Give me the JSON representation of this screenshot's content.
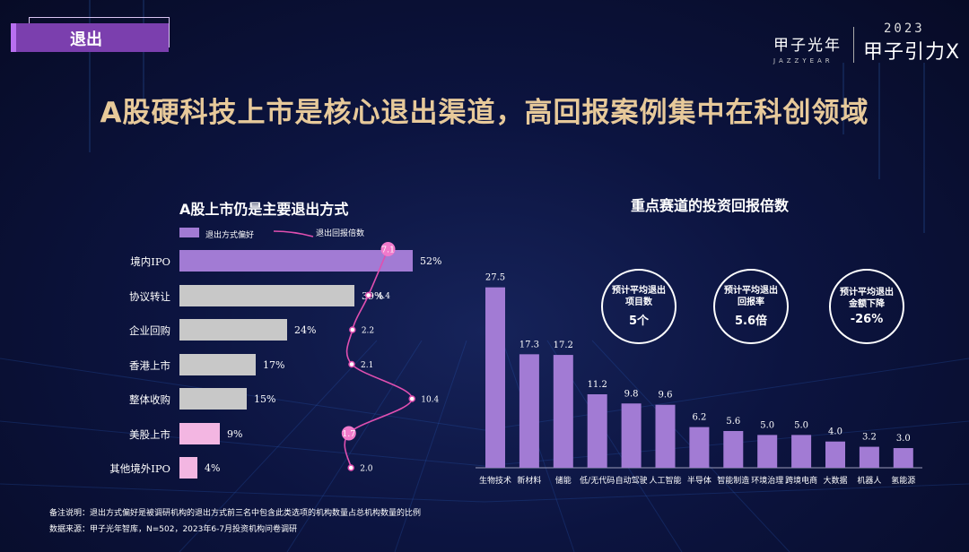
{
  "section_tag": "退出",
  "brand": {
    "name": "甲子光年",
    "name_en": "JAZZYEAR",
    "event_year": "2023",
    "event_name": "甲子引力X"
  },
  "headline": "A股硬科技上市是核心退出渠道，高回报案例集中在科创领域",
  "left_chart": {
    "title": "A股上市仍是主要退出方式",
    "legend": {
      "bar": "退出方式偏好",
      "line": "退出回报倍数"
    }
  },
  "right_chart": {
    "title": "重点赛道的投资回报倍数"
  },
  "stats": [
    {
      "label": "预计平均退出\n项目数",
      "value": "5个"
    },
    {
      "label": "预计平均退出\n回报率",
      "value": "5.6倍"
    },
    {
      "label": "预计平均退出\n金额下降",
      "value": "-26%"
    }
  ],
  "notes": {
    "remark": "备注说明：退出方式偏好是被调研机构的退出方式前三名中包含此类选项的机构数量占总机构数量的比例",
    "source": "数据来源：甲子光年智库，N=502，2023年6-7月投资机构问卷调研"
  },
  "chart_data": [
    {
      "type": "bar",
      "orientation": "horizontal",
      "title": "A股上市仍是主要退出方式",
      "categories": [
        "境内IPO",
        "协议转让",
        "企业回购",
        "香港上市",
        "整体收购",
        "美股上市",
        "其他境外IPO"
      ],
      "series": [
        {
          "name": "退出方式偏好",
          "values": [
            52,
            39,
            24,
            17,
            15,
            9,
            4
          ],
          "value_labels": [
            "52%",
            "39%",
            "24%",
            "17%",
            "15%",
            "9%",
            "4%"
          ],
          "colors": [
            "#a27bd4",
            "#c8c8c8",
            "#c8c8c8",
            "#c8c8c8",
            "#c8c8c8",
            "#f3b6e2",
            "#f3b6e2"
          ]
        },
        {
          "name": "退出回报倍数",
          "type": "line",
          "values": [
            7.1,
            4.4,
            2.2,
            2.1,
            10.4,
            1.7,
            2.0
          ],
          "value_labels": [
            "7.1",
            "4.4",
            "2.2",
            "2.1",
            "10.4",
            "1.7",
            "2.0"
          ],
          "highlight": [
            true,
            false,
            false,
            false,
            false,
            true,
            false
          ],
          "color": "#e04fb0"
        }
      ],
      "xlim": [
        0,
        60
      ]
    },
    {
      "type": "bar",
      "title": "重点赛道的投资回报倍数",
      "categories": [
        "生物技术",
        "新材料",
        "储能",
        "低/无代码",
        "自动驾驶",
        "人工智能",
        "半导体",
        "智能制造",
        "环境治理",
        "跨境电商",
        "大数据",
        "机器人",
        "氢能源"
      ],
      "values": [
        27.5,
        17.3,
        17.2,
        11.2,
        9.8,
        9.6,
        6.2,
        5.6,
        5.0,
        5.0,
        4.0,
        3.2,
        3.0
      ],
      "value_labels": [
        "27.5",
        "17.3",
        "17.2",
        "11.2",
        "9.8",
        "9.6",
        "6.2",
        "5.6",
        "5.0",
        "5.0",
        "4.0",
        "3.2",
        "3.0"
      ],
      "color": "#a27bd4",
      "ylim": [
        0,
        28
      ]
    }
  ]
}
